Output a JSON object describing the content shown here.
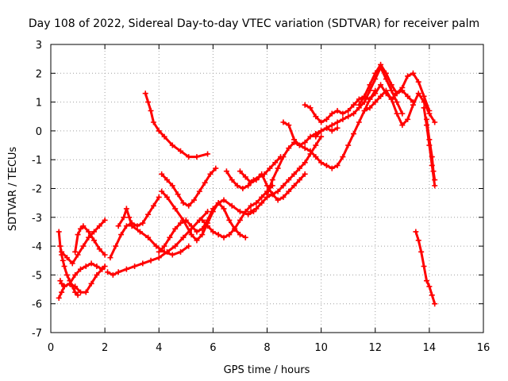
{
  "chart_data": {
    "type": "scatter",
    "title": "Day 108 of 2022, Sidereal Day-to-day VTEC variation (SDTVAR) for receiver palm",
    "xlabel": "GPS time / hours",
    "ylabel": "SDTVAR / TECUs",
    "xlim": [
      0,
      16
    ],
    "ylim": [
      -7,
      3
    ],
    "xticks": [
      0,
      2,
      4,
      6,
      8,
      10,
      12,
      14,
      16
    ],
    "yticks": [
      -7,
      -6,
      -5,
      -4,
      -3,
      -2,
      -1,
      0,
      1,
      2,
      3
    ],
    "grid": true,
    "marker": "+",
    "color": "#ff0000",
    "series": [
      {
        "x": [
          0.3,
          0.35,
          0.4,
          0.45,
          0.5,
          0.6,
          0.7,
          0.8,
          0.9,
          1.0
        ],
        "y": [
          -3.5,
          -4.0,
          -4.3,
          -4.5,
          -4.7,
          -5.0,
          -5.2,
          -5.4,
          -5.6,
          -5.7
        ]
      },
      {
        "x": [
          0.35,
          0.4,
          0.5,
          0.7,
          0.9,
          1.1,
          1.3,
          1.5,
          1.7,
          1.9
        ],
        "y": [
          -5.2,
          -5.3,
          -5.4,
          -5.3,
          -5.0,
          -4.8,
          -4.7,
          -4.6,
          -4.7,
          -4.8
        ]
      },
      {
        "x": [
          0.3,
          0.4,
          0.5,
          0.7,
          0.9,
          1.1,
          1.3,
          1.5,
          1.7,
          1.9,
          2.0
        ],
        "y": [
          -5.8,
          -5.6,
          -5.4,
          -5.3,
          -5.4,
          -5.6,
          -5.6,
          -5.3,
          -5.0,
          -4.8,
          -4.7
        ]
      },
      {
        "x": [
          0.4,
          0.6,
          0.8,
          1.0,
          1.2,
          1.4,
          1.6,
          1.8,
          2.0
        ],
        "y": [
          -4.2,
          -4.4,
          -4.6,
          -4.3,
          -4.0,
          -3.7,
          -3.5,
          -3.3,
          -3.1
        ]
      },
      {
        "x": [
          0.9,
          1.0,
          1.1,
          1.2,
          1.4,
          1.6,
          1.8,
          2.0
        ],
        "y": [
          -4.2,
          -3.6,
          -3.4,
          -3.3,
          -3.5,
          -3.8,
          -4.1,
          -4.3
        ]
      },
      {
        "x": [
          2.1,
          2.3,
          2.5,
          2.8,
          3.1,
          3.4,
          3.7,
          4.0,
          4.3,
          4.6,
          4.9,
          5.2,
          5.5,
          5.8
        ],
        "y": [
          -4.9,
          -5.0,
          -4.9,
          -4.8,
          -4.7,
          -4.6,
          -4.5,
          -4.4,
          -4.2,
          -4.0,
          -3.7,
          -3.4,
          -3.1,
          -2.8
        ]
      },
      {
        "x": [
          2.2,
          2.4,
          2.6,
          2.8,
          3.0,
          3.2,
          3.4,
          3.6,
          3.8,
          4.0
        ],
        "y": [
          -4.4,
          -4.0,
          -3.6,
          -3.3,
          -3.2,
          -3.3,
          -3.2,
          -2.9,
          -2.6,
          -2.3
        ]
      },
      {
        "x": [
          2.5,
          2.7,
          2.8,
          2.9,
          3.0,
          3.3,
          3.6,
          3.9,
          4.2,
          4.5,
          4.8,
          5.1
        ],
        "y": [
          -3.3,
          -3.0,
          -2.7,
          -3.0,
          -3.3,
          -3.5,
          -3.7,
          -4.0,
          -4.2,
          -4.3,
          -4.2,
          -4.0
        ]
      },
      {
        "x": [
          3.5,
          3.6,
          3.7,
          3.8,
          4.0,
          4.2,
          4.5,
          4.8,
          5.1,
          5.4,
          5.8
        ],
        "y": [
          1.3,
          1.0,
          0.7,
          0.3,
          0.0,
          -0.2,
          -0.5,
          -0.7,
          -0.9,
          -0.9,
          -0.8
        ]
      },
      {
        "x": [
          4.1,
          4.3,
          4.5,
          4.7,
          4.9,
          5.1,
          5.3,
          5.5,
          5.7,
          5.9,
          6.1
        ],
        "y": [
          -1.5,
          -1.7,
          -1.9,
          -2.2,
          -2.5,
          -2.6,
          -2.4,
          -2.1,
          -1.8,
          -1.5,
          -1.3
        ]
      },
      {
        "x": [
          4.1,
          4.3,
          4.6,
          4.9,
          5.2,
          5.4,
          5.6,
          5.8,
          6.0,
          6.2,
          6.4,
          6.7,
          7.0,
          7.3,
          7.5
        ],
        "y": [
          -2.1,
          -2.3,
          -2.7,
          -3.1,
          -3.6,
          -3.8,
          -3.6,
          -3.2,
          -2.8,
          -2.5,
          -2.4,
          -2.6,
          -2.8,
          -2.9,
          -2.8
        ]
      },
      {
        "x": [
          4.0,
          4.2,
          4.4,
          4.6,
          4.8,
          5.0,
          5.2,
          5.4,
          5.6,
          5.8,
          6.0,
          6.2,
          6.4,
          6.6,
          6.8,
          7.0,
          7.2
        ],
        "y": [
          -4.2,
          -4.0,
          -3.7,
          -3.4,
          -3.2,
          -3.1,
          -3.3,
          -3.5,
          -3.4,
          -3.1,
          -2.7,
          -2.5,
          -2.7,
          -3.1,
          -3.4,
          -3.6,
          -3.7
        ]
      },
      {
        "x": [
          5.6,
          5.8,
          6.0,
          6.2,
          6.4,
          6.6,
          6.8,
          7.0,
          7.2,
          7.4,
          7.6,
          7.8,
          8.0,
          8.2
        ],
        "y": [
          -3.1,
          -3.3,
          -3.5,
          -3.6,
          -3.7,
          -3.6,
          -3.4,
          -3.1,
          -2.8,
          -2.6,
          -2.5,
          -2.3,
          -2.1,
          -1.9
        ]
      },
      {
        "x": [
          6.5,
          6.7,
          6.9,
          7.1,
          7.3,
          7.5,
          7.7,
          7.9,
          8.1,
          8.3,
          8.5
        ],
        "y": [
          -1.4,
          -1.7,
          -1.9,
          -2.0,
          -1.9,
          -1.7,
          -1.6,
          -1.5,
          -1.3,
          -1.1,
          -0.9
        ]
      },
      {
        "x": [
          7.0,
          7.2,
          7.4,
          7.6,
          7.8,
          8.0,
          8.2,
          8.4,
          8.6,
          8.8,
          9.0,
          9.2,
          9.4
        ],
        "y": [
          -1.4,
          -1.6,
          -1.8,
          -1.7,
          -1.5,
          -1.9,
          -2.2,
          -2.4,
          -2.3,
          -2.1,
          -1.9,
          -1.7,
          -1.5
        ]
      },
      {
        "x": [
          7.4,
          7.6,
          7.8,
          8.0,
          8.2,
          8.4,
          8.6,
          8.8,
          9.0,
          9.2,
          9.4,
          9.6,
          9.8,
          10.0
        ],
        "y": [
          -2.8,
          -2.7,
          -2.5,
          -2.3,
          -2.2,
          -2.1,
          -1.9,
          -1.7,
          -1.5,
          -1.3,
          -1.1,
          -0.8,
          -0.5,
          -0.2
        ]
      },
      {
        "x": [
          8.0,
          8.2,
          8.4,
          8.6,
          8.8,
          9.0,
          9.2,
          9.4,
          9.6,
          9.8,
          10.0,
          10.2,
          10.4,
          10.6
        ],
        "y": [
          -2.2,
          -1.7,
          -1.3,
          -0.9,
          -0.6,
          -0.4,
          -0.5,
          -0.4,
          -0.2,
          -0.1,
          0.0,
          0.1,
          0.0,
          0.1
        ]
      },
      {
        "x": [
          8.6,
          8.8,
          9.0,
          9.2,
          9.4,
          9.6,
          9.8,
          10.0,
          10.2,
          10.4,
          10.6,
          10.8,
          11.0,
          11.2,
          11.4,
          11.6,
          11.8,
          12.0
        ],
        "y": [
          0.3,
          0.2,
          -0.3,
          -0.5,
          -0.6,
          -0.7,
          -0.9,
          -1.1,
          -1.2,
          -1.3,
          -1.2,
          -0.9,
          -0.5,
          -0.1,
          0.3,
          0.7,
          1.1,
          1.4
        ]
      },
      {
        "x": [
          9.4,
          9.6,
          9.8,
          10.0,
          10.2,
          10.4,
          10.6,
          10.8,
          11.0,
          11.2,
          11.4,
          11.6,
          11.8,
          12.0,
          12.2,
          12.4,
          12.6,
          12.8,
          13.0,
          13.2,
          13.4
        ],
        "y": [
          0.9,
          0.8,
          0.5,
          0.3,
          0.4,
          0.6,
          0.7,
          0.6,
          0.7,
          0.9,
          1.1,
          1.2,
          1.1,
          1.3,
          1.6,
          1.3,
          1.1,
          1.3,
          1.4,
          1.2,
          1.0
        ]
      },
      {
        "x": [
          9.8,
          10.0,
          10.2,
          10.4,
          10.6,
          10.8,
          11.0,
          11.2,
          11.4,
          11.6,
          11.8,
          12.0,
          12.2,
          12.4,
          12.6,
          12.8,
          13.0
        ],
        "y": [
          -0.2,
          0.0,
          0.1,
          0.2,
          0.3,
          0.4,
          0.5,
          0.6,
          0.8,
          1.0,
          1.4,
          1.8,
          2.2,
          1.8,
          1.4,
          1.0,
          0.6
        ]
      },
      {
        "x": [
          11.4,
          11.6,
          11.8,
          12.0,
          12.2,
          12.4,
          12.6,
          12.8,
          13.0,
          13.2,
          13.4,
          13.6,
          13.8,
          14.0
        ],
        "y": [
          0.9,
          1.2,
          1.6,
          2.0,
          2.3,
          2.0,
          1.6,
          1.3,
          1.5,
          1.9,
          2.0,
          1.7,
          1.2,
          0.7
        ]
      },
      {
        "x": [
          11.6,
          11.8,
          12.0,
          12.2,
          12.4,
          12.6,
          12.8,
          13.0,
          13.2,
          13.4,
          13.6,
          13.8,
          14.0,
          14.2
        ],
        "y": [
          0.7,
          0.8,
          1.0,
          1.2,
          1.4,
          1.1,
          0.6,
          0.2,
          0.4,
          0.9,
          1.3,
          1.0,
          0.6,
          0.3
        ]
      },
      {
        "x": [
          13.8,
          13.9,
          14.0,
          14.1,
          14.2
        ],
        "y": [
          0.8,
          0.2,
          -0.5,
          -1.2,
          -1.9
        ]
      },
      {
        "x": [
          13.9,
          14.0,
          14.1,
          14.15,
          14.2
        ],
        "y": [
          0.4,
          -0.3,
          -0.9,
          -1.4,
          -1.7
        ]
      },
      {
        "x": [
          13.5,
          13.6,
          13.7,
          13.8,
          13.9,
          14.0,
          14.1,
          14.2
        ],
        "y": [
          -3.5,
          -3.8,
          -4.2,
          -4.7,
          -5.2,
          -5.4,
          -5.7,
          -6.0
        ]
      }
    ]
  }
}
